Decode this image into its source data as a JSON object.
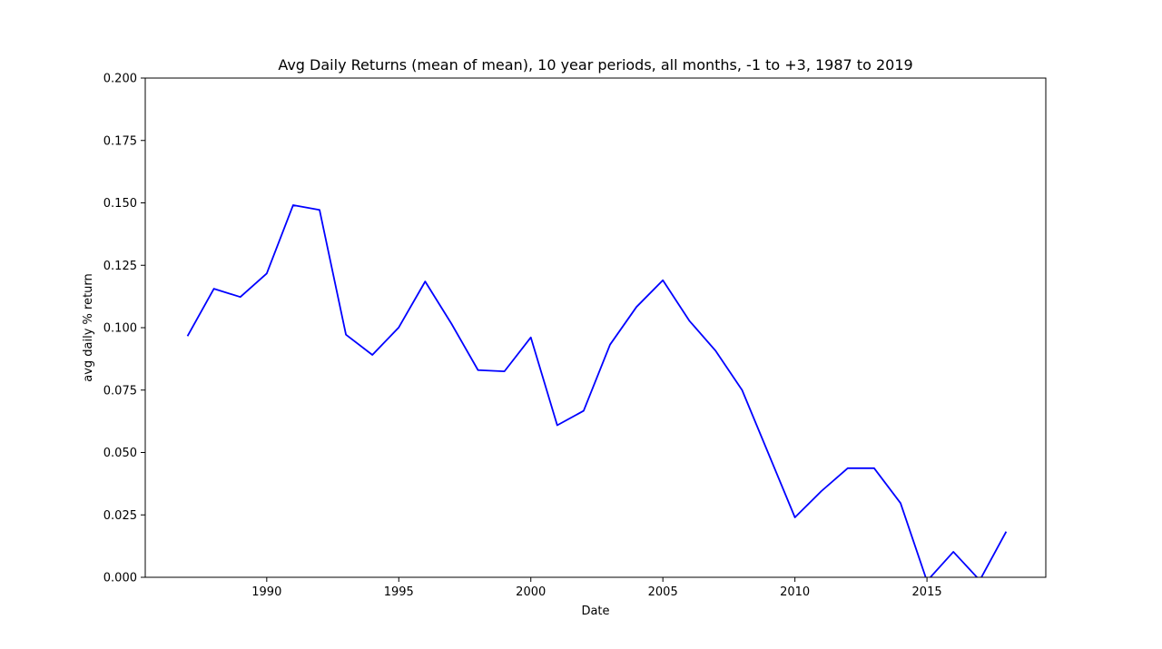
{
  "chart_data": {
    "type": "line",
    "title": "Avg Daily Returns (mean of mean), 10 year periods, all months, -1 to +3, 1987 to 2019",
    "xlabel": "Date",
    "ylabel": "avg daily % return",
    "xlim": [
      1985.4,
      2019.5
    ],
    "ylim": [
      0,
      0.2
    ],
    "x_ticks": [
      1990,
      1995,
      2000,
      2005,
      2010,
      2015
    ],
    "y_ticks": [
      0.0,
      0.025,
      0.05,
      0.075,
      0.1,
      0.125,
      0.15,
      0.175,
      0.2
    ],
    "y_tick_labels": [
      "0.000",
      "0.025",
      "0.050",
      "0.075",
      "0.100",
      "0.125",
      "0.150",
      "0.175",
      "0.200"
    ],
    "grid": false,
    "series": [
      {
        "color": "#0000ff",
        "x": [
          1987,
          1988,
          1989,
          1990,
          1991,
          1992,
          1993,
          1994,
          1995,
          1996,
          1997,
          1998,
          1999,
          2000,
          2001,
          2002,
          2003,
          2004,
          2005,
          2006,
          2007,
          2008,
          2009,
          2010,
          2011,
          2012,
          2013,
          2014,
          2015,
          2016,
          2017,
          2018
        ],
        "y": [
          0.0966,
          0.1156,
          0.1123,
          0.1217,
          0.1491,
          0.1472,
          0.0972,
          0.0891,
          0.1001,
          0.1185,
          0.1015,
          0.083,
          0.0825,
          0.0961,
          0.0609,
          0.0667,
          0.0932,
          0.1083,
          0.119,
          0.1028,
          0.0907,
          0.075,
          0.0495,
          0.024,
          0.0345,
          0.0437,
          0.0437,
          0.0297,
          -0.0015,
          0.0102,
          -0.0012,
          0.0183
        ]
      }
    ]
  }
}
